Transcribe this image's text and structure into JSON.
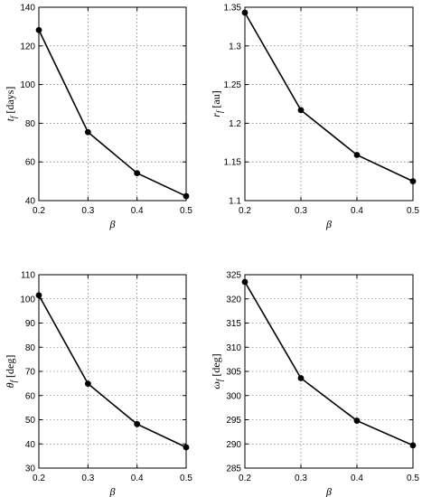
{
  "chart_data": [
    {
      "type": "line",
      "xlabel": "β",
      "ylabel": {
        "symbol": "t",
        "sub": "f",
        "unit": "[days]"
      },
      "x": [
        0.2,
        0.3,
        0.4,
        0.5
      ],
      "series": [
        {
          "values": [
            128.2,
            75.4,
            54.2,
            42.3
          ]
        }
      ],
      "xlim": [
        0.2,
        0.5
      ],
      "ylim": [
        40,
        140
      ],
      "xticks": [
        "0.2",
        "0.3",
        "0.4",
        "0.5"
      ],
      "yticks": [
        "40",
        "60",
        "80",
        "100",
        "120",
        "140"
      ],
      "grid": true,
      "marker": "circle"
    },
    {
      "type": "line",
      "xlabel": "β",
      "ylabel": {
        "symbol": "r",
        "sub": "f",
        "unit": "[au]"
      },
      "x": [
        0.2,
        0.3,
        0.4,
        0.5
      ],
      "series": [
        {
          "values": [
            1.343,
            1.217,
            1.159,
            1.125
          ]
        }
      ],
      "xlim": [
        0.2,
        0.5
      ],
      "ylim": [
        1.1,
        1.35
      ],
      "xticks": [
        "0.2",
        "0.3",
        "0.4",
        "0.5"
      ],
      "yticks": [
        "1.1",
        "1.15",
        "1.2",
        "1.25",
        "1.3",
        "1.35"
      ],
      "grid": true,
      "marker": "circle"
    },
    {
      "type": "line",
      "xlabel": "β",
      "ylabel": {
        "symbol": "θ",
        "sub": "f",
        "unit": "[deg]"
      },
      "x": [
        0.2,
        0.3,
        0.4,
        0.5
      ],
      "series": [
        {
          "values": [
            101.5,
            64.9,
            48.2,
            38.6
          ]
        }
      ],
      "xlim": [
        0.2,
        0.5
      ],
      "ylim": [
        30,
        110
      ],
      "xticks": [
        "0.2",
        "0.3",
        "0.4",
        "0.5"
      ],
      "yticks": [
        "30",
        "40",
        "50",
        "60",
        "70",
        "80",
        "90",
        "100",
        "110"
      ],
      "grid": true,
      "marker": "circle"
    },
    {
      "type": "line",
      "xlabel": "β",
      "ylabel": {
        "symbol": "ω",
        "sub": "f",
        "unit": "[deg]"
      },
      "x": [
        0.2,
        0.3,
        0.4,
        0.5
      ],
      "series": [
        {
          "values": [
            323.5,
            303.6,
            294.8,
            289.7
          ]
        }
      ],
      "xlim": [
        0.2,
        0.5
      ],
      "ylim": [
        285,
        325
      ],
      "xticks": [
        "0.2",
        "0.3",
        "0.4",
        "0.5"
      ],
      "yticks": [
        "285",
        "290",
        "295",
        "300",
        "305",
        "310",
        "315",
        "320",
        "325"
      ],
      "grid": true,
      "marker": "circle"
    }
  ]
}
